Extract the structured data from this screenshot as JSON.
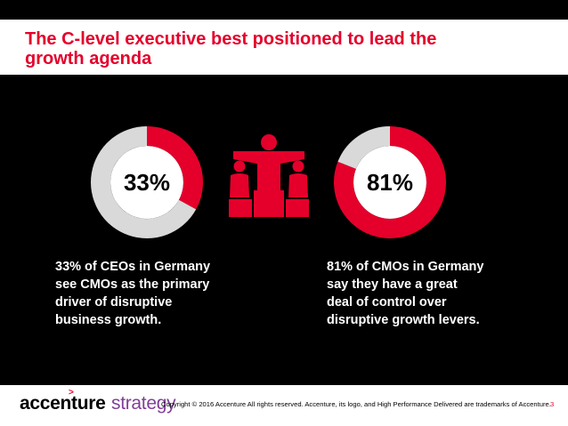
{
  "title": {
    "line1": "The C-level executive best positioned to lead the",
    "line2": "growth agenda"
  },
  "chart_data": [
    {
      "type": "pie",
      "variant": "donut",
      "center_label": "33%",
      "values": [
        33,
        67
      ],
      "colors": [
        "#e4002b",
        "#d9d9d9"
      ]
    },
    {
      "type": "pie",
      "variant": "donut",
      "center_label": "81%",
      "values": [
        81,
        19
      ],
      "colors": [
        "#e4002b",
        "#d9d9d9"
      ]
    }
  ],
  "stats": {
    "left": {
      "lines": [
        "33% of CEOs in Germany",
        "see CMOs as the primary",
        "driver of disruptive",
        "business growth."
      ]
    },
    "right": {
      "lines": [
        "81% of CMOs in Germany",
        "say they have a great",
        "deal of control over",
        "disruptive growth levers."
      ]
    }
  },
  "icon": "podium-people-icon",
  "footer": {
    "logo_main": "accenture",
    "logo_sub": "strategy",
    "copyright": "Copyright © 2016 Accenture All rights reserved. Accenture, its logo, and High Performance Delivered are trademarks of Accenture.",
    "page_number": "3"
  },
  "colors": {
    "accent": "#e4002b",
    "background": "#000000",
    "donut_rest": "#d9d9d9",
    "brand_purple": "#7f3f98"
  }
}
